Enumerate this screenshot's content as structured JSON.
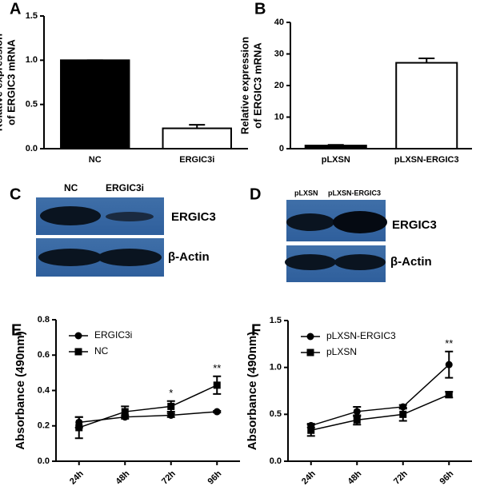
{
  "chart_data": [
    {
      "type": "bar",
      "panel": "A",
      "ylabel": [
        "Relative expression",
        "of ERGIC3 mRNA"
      ],
      "categories": [
        "NC",
        "ERGIC3i"
      ],
      "values": [
        1.0,
        0.23
      ],
      "errors": [
        0,
        0.04
      ],
      "colors": [
        "#000000",
        "#ffffff"
      ],
      "ylim": [
        0,
        1.5
      ],
      "yticks": [
        {
          "value": 0,
          "label": "0.0"
        },
        0.5,
        {
          "value": 1,
          "label": "1.0"
        },
        1.5
      ]
    },
    {
      "type": "bar",
      "panel": "B",
      "ylabel": [
        "Relative expression",
        "of ERGIC3 mRNA"
      ],
      "categories": [
        "pLXSN",
        "pLXSN-ERGIC3"
      ],
      "values": [
        1.0,
        27.2
      ],
      "errors": [
        0.2,
        1.4
      ],
      "colors": [
        "#000000",
        "#ffffff"
      ],
      "ylim": [
        0,
        40
      ],
      "yticks": [
        0,
        10,
        20,
        30,
        40
      ]
    },
    {
      "type": "line",
      "panel": "E",
      "ylabel": [
        "Absorbance (490nm)"
      ],
      "categories": [
        "24h",
        "48h",
        "72h",
        "96h"
      ],
      "series": [
        {
          "name": "ERGIC3i",
          "color": "#000000",
          "marker": "circle",
          "values": [
            0.22,
            0.25,
            0.26,
            0.28
          ],
          "errors": [
            0.03,
            0.01,
            0.01,
            0.005
          ]
        },
        {
          "name": "NC",
          "color": "#000000",
          "marker": "square",
          "values": [
            0.19,
            0.28,
            0.31,
            0.43
          ],
          "errors": [
            0.06,
            0.03,
            0.03,
            0.05
          ]
        }
      ],
      "annotations": [
        {
          "text": "*",
          "x": "72h"
        },
        {
          "text": "**",
          "x": "96h"
        }
      ],
      "ylim": [
        0,
        0.8
      ],
      "yticks": [
        {
          "value": 0,
          "label": "0.0"
        },
        0.2,
        0.4,
        0.6,
        0.8
      ]
    },
    {
      "type": "line",
      "panel": "F",
      "ylabel": [
        "Absorbance (490nm)"
      ],
      "categories": [
        "24h",
        "48h",
        "72h",
        "96h"
      ],
      "series": [
        {
          "name": "pLXSN-ERGIC3",
          "color": "#000000",
          "marker": "circle",
          "values": [
            0.38,
            0.53,
            0.58,
            1.03
          ],
          "errors": [
            0.02,
            0.05,
            0.02,
            0.14
          ]
        },
        {
          "name": "pLXSN",
          "color": "#000000",
          "marker": "square",
          "values": [
            0.33,
            0.44,
            0.5,
            0.71
          ],
          "errors": [
            0.06,
            0.05,
            0.07,
            0.03
          ]
        }
      ],
      "annotations": [
        {
          "text": "**",
          "x": "96h"
        }
      ],
      "ylim": [
        0,
        1.5
      ],
      "yticks": [
        {
          "value": 0,
          "label": "0.0"
        },
        0.5,
        {
          "value": 1,
          "label": "1.0"
        },
        1.5
      ]
    }
  ],
  "blots": [
    {
      "panel": "C",
      "lanes": [
        "NC",
        "ERGIC3i"
      ],
      "bands": [
        "ERGIC3",
        "β-Actin"
      ]
    },
    {
      "panel": "D",
      "lanes": [
        "pLXSN",
        "pLXSN-ERGIC3"
      ],
      "bands": [
        "ERGIC3",
        "β-Actin"
      ]
    }
  ]
}
